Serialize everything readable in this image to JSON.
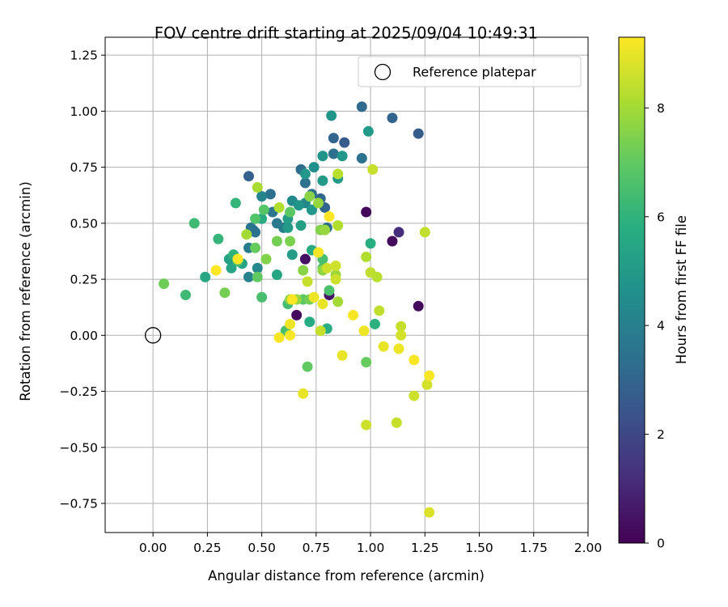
{
  "chart_data": {
    "type": "scatter",
    "title": "FOV centre drift starting at 2025/09/04 10:49:31",
    "xlabel": "Angular distance from reference (arcmin)",
    "ylabel": "Rotation from reference (arcmin)",
    "xlim": [
      -0.22,
      2.0
    ],
    "ylim": [
      -0.88,
      1.33
    ],
    "xticks": [
      "0.00",
      "0.25",
      "0.50",
      "0.75",
      "1.00",
      "1.25",
      "1.50",
      "1.75",
      "2.00"
    ],
    "yticks": [
      "−0.75",
      "−0.50",
      "−0.25",
      "0.00",
      "0.25",
      "0.50",
      "0.75",
      "1.00",
      "1.25"
    ],
    "grid": true,
    "legend": {
      "placement": "top-right",
      "entries": [
        "Reference platepar"
      ]
    },
    "reference_point": {
      "x": 0.0,
      "y": 0.0,
      "marker": "hollow-circle"
    },
    "colorbar": {
      "label": "Hours from first FF file",
      "colormap": "viridis",
      "range": [
        0,
        9.3
      ],
      "ticks": [
        "0",
        "2",
        "4",
        "6",
        "8"
      ]
    },
    "color_variable": "Hours from first FF file",
    "points": [
      [
        0.98,
        0.55,
        0.2
      ],
      [
        1.1,
        0.42,
        0.3
      ],
      [
        1.13,
        0.46,
        1.2
      ],
      [
        1.22,
        0.13,
        0.3
      ],
      [
        0.7,
        0.34,
        0.4
      ],
      [
        0.81,
        0.18,
        0.5
      ],
      [
        0.66,
        0.09,
        0.3
      ],
      [
        0.88,
        0.86,
        2.6
      ],
      [
        0.83,
        0.88,
        3.0
      ],
      [
        0.96,
        1.02,
        3.2
      ],
      [
        1.1,
        0.97,
        3.0
      ],
      [
        1.22,
        0.9,
        2.7
      ],
      [
        0.44,
        0.71,
        2.9
      ],
      [
        0.83,
        0.81,
        3.4
      ],
      [
        0.96,
        0.79,
        3.5
      ],
      [
        0.46,
        0.47,
        2.7
      ],
      [
        0.54,
        0.63,
        3.4
      ],
      [
        0.79,
        0.57,
        3.0
      ],
      [
        0.77,
        0.61,
        3.1
      ],
      [
        0.8,
        0.48,
        3.3
      ],
      [
        0.68,
        0.74,
        3.3
      ],
      [
        0.7,
        0.68,
        3.5
      ],
      [
        0.73,
        0.63,
        3.4
      ],
      [
        0.45,
        0.48,
        3.6
      ],
      [
        0.47,
        0.46,
        3.5
      ],
      [
        0.57,
        0.5,
        3.7
      ],
      [
        0.6,
        0.48,
        3.9
      ],
      [
        0.55,
        0.55,
        3.6
      ],
      [
        0.44,
        0.39,
        3.9
      ],
      [
        0.44,
        0.26,
        4.1
      ],
      [
        0.48,
        0.3,
        4.3
      ],
      [
        0.5,
        0.62,
        4.2
      ],
      [
        0.7,
        0.59,
        4.3
      ],
      [
        0.73,
        0.56,
        4.4
      ],
      [
        0.64,
        0.6,
        4.4
      ],
      [
        0.82,
        0.98,
        4.8
      ],
      [
        0.99,
        0.91,
        5.0
      ],
      [
        0.78,
        0.8,
        4.8
      ],
      [
        0.87,
        0.8,
        4.9
      ],
      [
        0.74,
        0.75,
        4.6
      ],
      [
        0.7,
        0.72,
        4.9
      ],
      [
        0.67,
        0.58,
        4.8
      ],
      [
        0.73,
        0.56,
        4.9
      ],
      [
        0.78,
        0.69,
        5.0
      ],
      [
        0.85,
        0.7,
        5.0
      ],
      [
        0.62,
        0.52,
        5.1
      ],
      [
        0.62,
        0.48,
        5.0
      ],
      [
        0.68,
        0.49,
        5.2
      ],
      [
        0.64,
        0.36,
        5.1
      ],
      [
        0.57,
        0.27,
        5.5
      ],
      [
        0.36,
        0.3,
        5.4
      ],
      [
        0.41,
        0.32,
        5.4
      ],
      [
        0.35,
        0.34,
        5.3
      ],
      [
        0.24,
        0.26,
        5.5
      ],
      [
        0.5,
        0.52,
        5.6
      ],
      [
        0.73,
        0.38,
        5.6
      ],
      [
        0.72,
        0.06,
        5.7
      ],
      [
        0.8,
        0.03,
        5.8
      ],
      [
        1.0,
        0.41,
        5.8
      ],
      [
        1.02,
        0.05,
        5.9
      ],
      [
        0.37,
        0.36,
        6.0
      ],
      [
        0.3,
        0.43,
        6.1
      ],
      [
        0.19,
        0.5,
        6.3
      ],
      [
        0.15,
        0.18,
        6.3
      ],
      [
        0.39,
        0.33,
        6.4
      ],
      [
        0.5,
        0.17,
        6.5
      ],
      [
        0.62,
        0.14,
        6.4
      ],
      [
        0.61,
        0.02,
        6.5
      ],
      [
        0.78,
        0.3,
        6.6
      ],
      [
        0.81,
        0.2,
        6.6
      ],
      [
        0.78,
        0.34,
        6.5
      ],
      [
        0.47,
        0.52,
        6.7
      ],
      [
        0.51,
        0.56,
        6.8
      ],
      [
        0.63,
        0.55,
        6.9
      ],
      [
        0.38,
        0.59,
        6.1
      ],
      [
        0.69,
        0.16,
        6.9
      ],
      [
        0.71,
        -0.14,
        7.0
      ],
      [
        0.98,
        -0.12,
        7.1
      ],
      [
        0.05,
        0.23,
        7.2
      ],
      [
        0.33,
        0.19,
        7.3
      ],
      [
        0.48,
        0.26,
        7.0
      ],
      [
        0.47,
        0.39,
        7.1
      ],
      [
        0.57,
        0.42,
        7.3
      ],
      [
        0.63,
        0.42,
        7.4
      ],
      [
        0.52,
        0.34,
        7.5
      ],
      [
        0.72,
        0.16,
        7.3
      ],
      [
        0.69,
        0.29,
        7.6
      ],
      [
        0.78,
        0.29,
        7.7
      ],
      [
        0.77,
        0.47,
        7.5
      ],
      [
        0.79,
        0.47,
        7.8
      ],
      [
        0.76,
        0.59,
        7.8
      ],
      [
        0.72,
        0.62,
        7.6
      ],
      [
        0.63,
        0.16,
        7.7
      ],
      [
        0.66,
        0.16,
        7.8
      ],
      [
        0.84,
        0.27,
        7.9
      ],
      [
        0.85,
        0.15,
        8.0
      ],
      [
        0.43,
        0.45,
        8.0
      ],
      [
        0.48,
        0.66,
        8.1
      ],
      [
        0.58,
        0.57,
        8.2
      ],
      [
        0.85,
        0.49,
        8.2
      ],
      [
        0.85,
        0.72,
        8.3
      ],
      [
        0.98,
        0.35,
        8.2
      ],
      [
        1.0,
        0.28,
        8.4
      ],
      [
        1.03,
        0.26,
        8.3
      ],
      [
        1.04,
        0.11,
        8.4
      ],
      [
        1.25,
        0.46,
        8.4
      ],
      [
        1.01,
        0.74,
        8.5
      ],
      [
        0.77,
        0.02,
        8.5
      ],
      [
        0.71,
        0.24,
        8.5
      ],
      [
        0.84,
        0.25,
        8.6
      ],
      [
        0.84,
        0.31,
        8.6
      ],
      [
        0.8,
        0.3,
        8.6
      ],
      [
        0.98,
        -0.4,
        8.6
      ],
      [
        1.12,
        -0.39,
        8.5
      ],
      [
        1.2,
        -0.27,
        8.6
      ],
      [
        1.14,
        0.04,
        8.5
      ],
      [
        1.14,
        0.0,
        8.7
      ],
      [
        1.26,
        -0.22,
        8.7
      ],
      [
        1.27,
        -0.79,
        8.8
      ],
      [
        0.69,
        -0.26,
        9.0
      ],
      [
        0.87,
        -0.09,
        9.0
      ],
      [
        1.06,
        -0.05,
        9.0
      ],
      [
        1.13,
        -0.06,
        9.1
      ],
      [
        1.2,
        -0.11,
        9.2
      ],
      [
        1.27,
        -0.18,
        9.2
      ],
      [
        0.97,
        0.02,
        9.1
      ],
      [
        0.92,
        0.09,
        9.2
      ],
      [
        0.78,
        0.14,
        9.0
      ],
      [
        0.74,
        0.17,
        9.1
      ],
      [
        0.58,
        -0.01,
        9.2
      ],
      [
        0.63,
        0.0,
        9.2
      ],
      [
        0.63,
        0.05,
        9.1
      ],
      [
        0.64,
        0.16,
        9.3
      ],
      [
        0.81,
        0.53,
        9.3
      ],
      [
        0.76,
        0.37,
        9.2
      ],
      [
        0.39,
        0.34,
        9.3
      ],
      [
        0.29,
        0.29,
        9.3
      ]
    ]
  }
}
